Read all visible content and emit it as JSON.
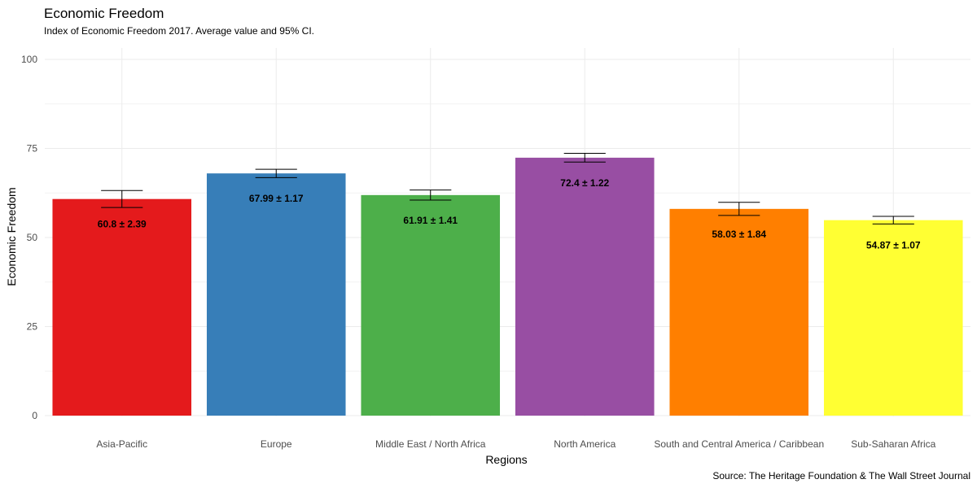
{
  "chart_data": {
    "type": "bar",
    "title": "Economic Freedom",
    "subtitle": "Index of Economic Freedom 2017. Average value and 95% CI.",
    "xlabel": "Regions",
    "ylabel": "Economic Freedom",
    "caption": "Source: The Heritage Foundation & The Wall Street Journal",
    "ylim": [
      0,
      100
    ],
    "yticks": [
      0,
      25,
      50,
      75,
      100
    ],
    "grid": true,
    "categories": [
      "Asia-Pacific",
      "Europe",
      "Middle East / North Africa",
      "North America",
      "South and Central America / Caribbean",
      "Sub-Saharan Africa"
    ],
    "values": [
      60.8,
      67.99,
      61.91,
      72.4,
      58.03,
      54.87
    ],
    "ci": [
      2.39,
      1.17,
      1.41,
      1.22,
      1.84,
      1.07
    ],
    "labels": [
      "60.8 ± 2.39",
      "67.99 ± 1.17",
      "61.91 ± 1.41",
      "72.4 ± 1.22",
      "58.03 ± 1.84",
      "54.87 ± 1.07"
    ],
    "colors": [
      "#E41A1C",
      "#377EB8",
      "#4DAF4A",
      "#984EA3",
      "#FF7F00",
      "#FFFF33"
    ]
  }
}
